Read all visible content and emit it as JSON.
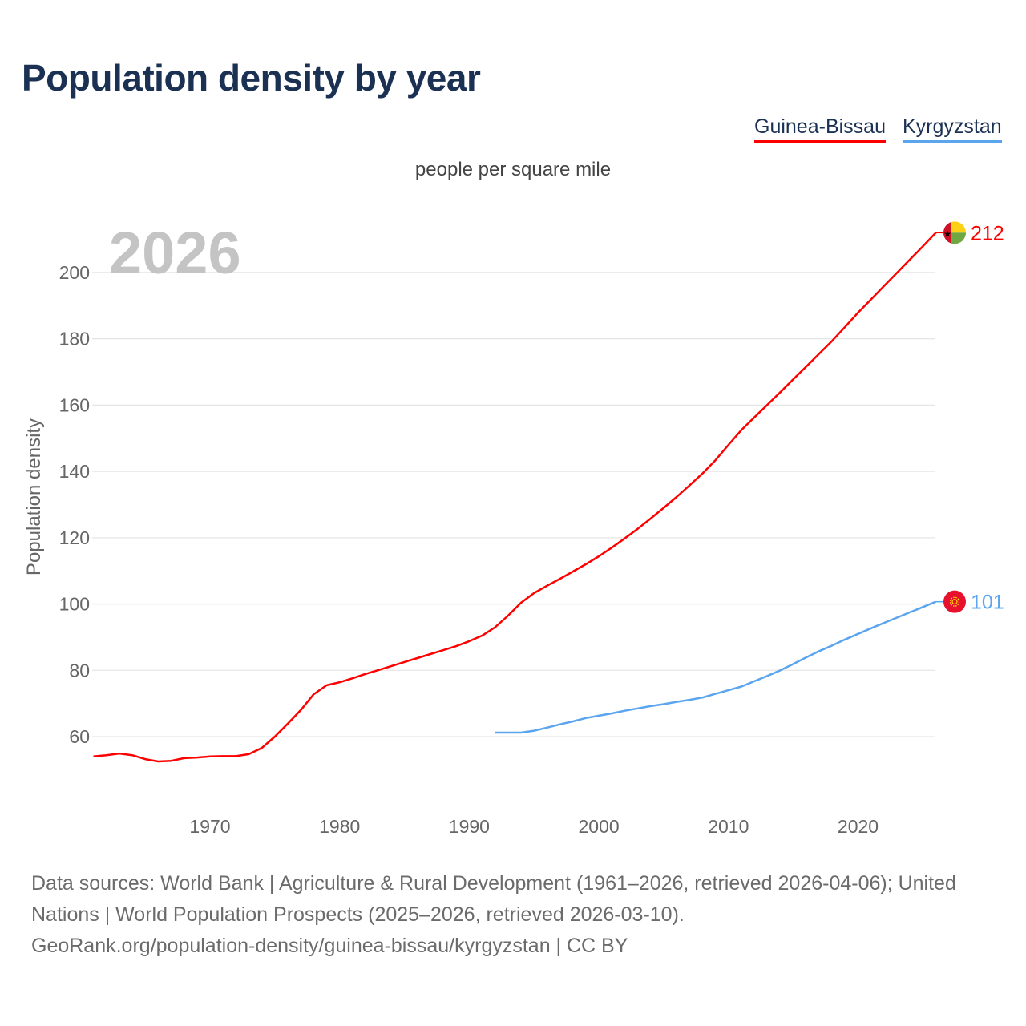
{
  "header": {
    "title": "Population density by year",
    "unit": "people per square mile"
  },
  "legend": [
    {
      "label": "Guinea-Bissau",
      "color": "#ff0000"
    },
    {
      "label": "Kyrgyzstan",
      "color": "#5aa5ee"
    }
  ],
  "chart_data": {
    "type": "line",
    "title": "Population density by year",
    "subtitle": "people per square mile",
    "ylabel": "Population density",
    "xlabel": "",
    "year_watermark": "2026",
    "xlim": [
      1961,
      2026
    ],
    "ylim": [
      35,
      220
    ],
    "xticks": [
      1970,
      1980,
      1990,
      2000,
      2010,
      2020
    ],
    "yticks": [
      60,
      80,
      100,
      120,
      140,
      160,
      180,
      200
    ],
    "grid": true,
    "legend_position": "top-right",
    "series": [
      {
        "name": "Guinea-Bissau",
        "color": "#ff0000",
        "end_label": "212",
        "flag": "guinea-bissau",
        "x_start": 1961,
        "values": [
          54.0,
          54.4,
          54.9,
          54.4,
          53.2,
          52.5,
          52.7,
          53.5,
          53.7,
          54.0,
          54.1,
          54.1,
          54.7,
          56.6,
          60.0,
          63.9,
          68.0,
          72.8,
          75.5,
          76.4,
          77.6,
          78.9,
          80.1,
          81.3,
          82.5,
          83.7,
          84.9,
          86.1,
          87.3,
          88.8,
          90.5,
          93.0,
          96.5,
          100.4,
          103.3,
          105.5,
          107.6,
          109.8,
          112.0,
          114.4,
          117.0,
          119.8,
          122.7,
          125.8,
          129.0,
          132.3,
          135.8,
          139.4,
          143.4,
          148.0,
          152.5,
          156.3,
          160.1,
          163.9,
          167.8,
          171.6,
          175.5,
          179.4,
          183.6,
          187.9,
          191.9,
          195.9,
          199.9,
          203.9,
          207.9,
          212.0
        ]
      },
      {
        "name": "Kyrgyzstan",
        "color": "#5aa5ee",
        "end_label": "101",
        "flag": "kyrgyzstan",
        "x_start": 1992,
        "values": [
          61.2,
          61.2,
          61.2,
          61.8,
          62.7,
          63.7,
          64.6,
          65.6,
          66.3,
          67.0,
          67.8,
          68.5,
          69.2,
          69.8,
          70.5,
          71.1,
          71.8,
          72.9,
          74.0,
          75.1,
          76.7,
          78.3,
          80.0,
          81.9,
          83.9,
          85.8,
          87.5,
          89.3,
          91.0,
          92.7,
          94.3,
          95.9,
          97.5,
          99.1,
          100.7
        ]
      }
    ]
  },
  "footer": {
    "line1": "Data sources: World Bank | Agriculture & Rural Development (1961–2026, retrieved 2026-04-06); United Nations | World Population Prospects (2025–2026, retrieved 2026-03-10).",
    "line2": "GeoRank.org/population-density/guinea-bissau/kyrgyzstan | CC BY"
  }
}
